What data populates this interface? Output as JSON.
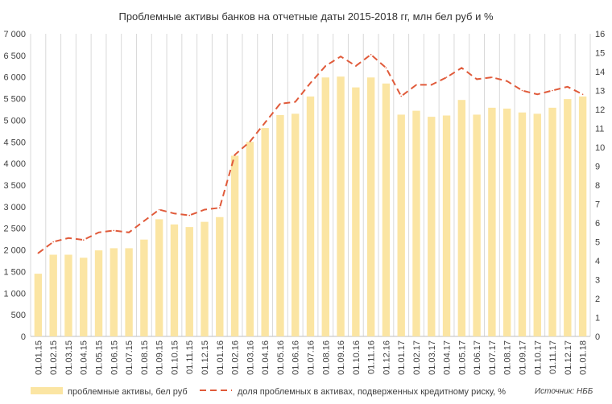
{
  "chart_data": {
    "type": "bar",
    "title": "Проблемные активы банков на отчетные даты 2015-2018 гг, млн бел руб и %",
    "categories": [
      "01.01.15",
      "01.02.15",
      "01.03.15",
      "01.04.15",
      "01.05.15",
      "01.06.15",
      "01.07.15",
      "01.08.15",
      "01.09.15",
      "01.10.15",
      "01.11.15",
      "01.12.15",
      "01.01.16",
      "01.02.16",
      "01.03.16",
      "01.04.16",
      "01.05.16",
      "01.06.16",
      "01.07.16",
      "01.08.16",
      "01.09.16",
      "01.10.16",
      "01.11.16",
      "01.12.16",
      "01.01.17",
      "01.02.17",
      "01.03.17",
      "01.04.17",
      "01.05.17",
      "01.06.17",
      "01.07.17",
      "01.08.17",
      "01.09.17",
      "01.10.17",
      "01.11.17",
      "01.12.17",
      "01.01.18"
    ],
    "series": [
      {
        "name": "проблемные активы, бел руб",
        "type": "bar",
        "axis": "left",
        "color": "#FBE5A3",
        "values": [
          1450,
          1890,
          1890,
          1820,
          1990,
          2040,
          2040,
          2240,
          2710,
          2590,
          2530,
          2650,
          2760,
          4180,
          4500,
          4820,
          5120,
          5150,
          5550,
          5990,
          6010,
          5760,
          5990,
          5850,
          5130,
          5220,
          5080,
          5110,
          5470,
          5130,
          5290,
          5270,
          5180,
          5150,
          5290,
          5490,
          5550
        ]
      },
      {
        "name": "доля проблемных в активах, подверженных кредитному риску, %",
        "type": "line",
        "axis": "right",
        "color": "#E05A3A",
        "values": [
          4.4,
          5.0,
          5.2,
          5.1,
          5.5,
          5.6,
          5.5,
          6.1,
          6.7,
          6.5,
          6.4,
          6.7,
          6.8,
          9.6,
          10.3,
          11.3,
          12.3,
          12.4,
          13.4,
          14.3,
          14.8,
          14.3,
          14.9,
          14.2,
          12.7,
          13.3,
          13.3,
          13.7,
          14.2,
          13.6,
          13.7,
          13.5,
          13.0,
          12.8,
          13.0,
          13.2,
          12.8
        ]
      }
    ],
    "y_left": {
      "min": 0,
      "max": 7000,
      "step": 500,
      "ticks": [
        "0",
        "500",
        "1 000",
        "1 500",
        "2 000",
        "2 500",
        "3 000",
        "3 500",
        "4 000",
        "4 500",
        "5 000",
        "5 500",
        "6 000",
        "6 500",
        "7 000"
      ]
    },
    "y_right": {
      "min": 0,
      "max": 16,
      "step": 1,
      "ticks": [
        "0",
        "1",
        "2",
        "3",
        "4",
        "5",
        "6",
        "7",
        "8",
        "9",
        "10",
        "11",
        "12",
        "13",
        "14",
        "15",
        "16"
      ]
    },
    "grid": "vertical",
    "legend_position": "bottom",
    "source": "Источник: НББ"
  }
}
